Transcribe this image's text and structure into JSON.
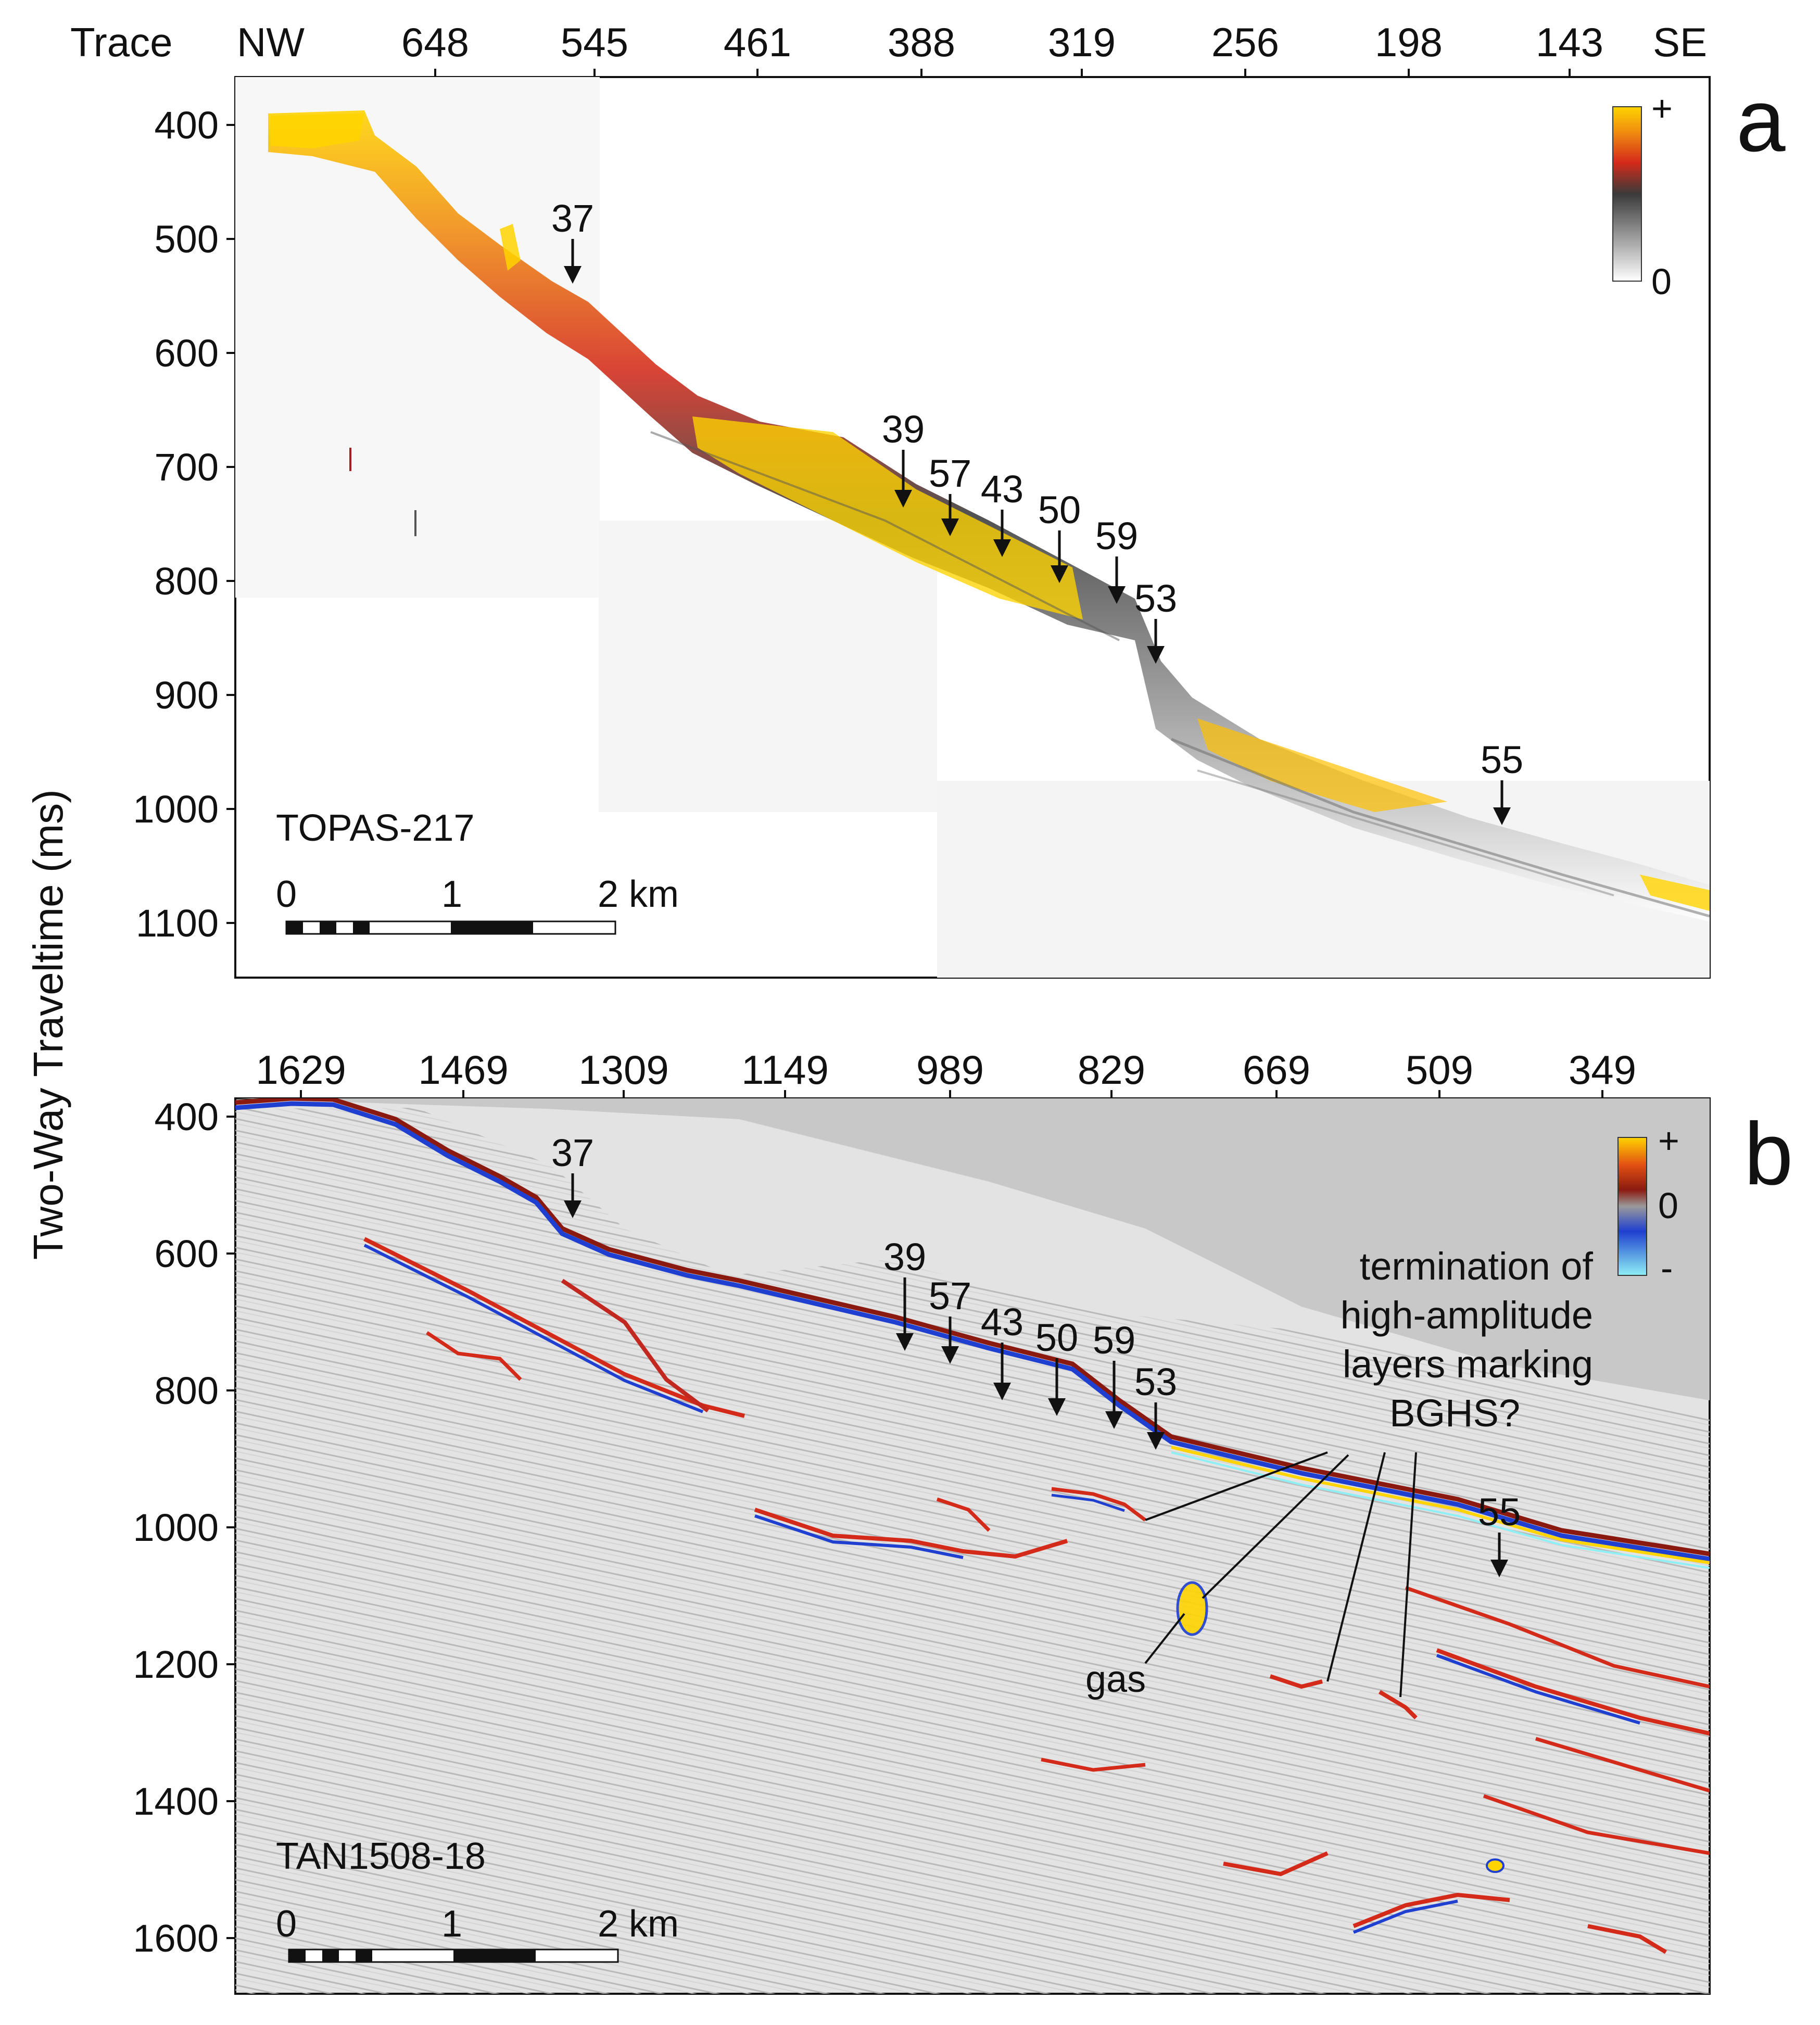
{
  "y_axis_label": "Two-Way Traveltime (ms)",
  "panel_a": {
    "letter": "a",
    "top_title": "Trace",
    "direction_left": "NW",
    "direction_right": "SE",
    "traces": [
      "648",
      "545",
      "461",
      "388",
      "319",
      "256",
      "198",
      "143"
    ],
    "yticks": [
      "400",
      "500",
      "600",
      "700",
      "800",
      "900",
      "1000",
      "1100"
    ],
    "line_name": "TOPAS-217",
    "scale": {
      "t0": "0",
      "t1": "1",
      "t2": "2 km"
    },
    "legend": {
      "plus": "+",
      "zero": "0"
    },
    "markers": [
      {
        "id": "37",
        "label": "37"
      },
      {
        "id": "39",
        "label": "39"
      },
      {
        "id": "57",
        "label": "57"
      },
      {
        "id": "43",
        "label": "43"
      },
      {
        "id": "50",
        "label": "50"
      },
      {
        "id": "59",
        "label": "59"
      },
      {
        "id": "53",
        "label": "53"
      },
      {
        "id": "55",
        "label": "55"
      }
    ]
  },
  "panel_b": {
    "letter": "b",
    "traces": [
      "1629",
      "1469",
      "1309",
      "1149",
      "989",
      "829",
      "669",
      "509",
      "349"
    ],
    "yticks": [
      "400",
      "600",
      "800",
      "1000",
      "1200",
      "1400",
      "1600"
    ],
    "line_name": "TAN1508-18",
    "scale": {
      "t0": "0",
      "t1": "1",
      "t2": "2 km"
    },
    "legend": {
      "plus": "+",
      "zero": "0",
      "minus": "-"
    },
    "markers": [
      {
        "id": "37",
        "label": "37"
      },
      {
        "id": "39",
        "label": "39"
      },
      {
        "id": "57",
        "label": "57"
      },
      {
        "id": "43",
        "label": "43"
      },
      {
        "id": "50",
        "label": "50"
      },
      {
        "id": "59",
        "label": "59"
      },
      {
        "id": "53",
        "label": "53"
      },
      {
        "id": "55",
        "label": "55"
      }
    ],
    "annotation_lines": [
      "termination of",
      "high-amplitude",
      "layers marking",
      "BGHS?"
    ],
    "gas_label": "gas"
  },
  "colors": {
    "amp_yellow": "#ffd400",
    "amp_red": "#d42a1a",
    "amp_blue": "#1f3fd0",
    "amp_cyan": "#8ef0f5",
    "panel_b_background": "#c8c8c8"
  }
}
